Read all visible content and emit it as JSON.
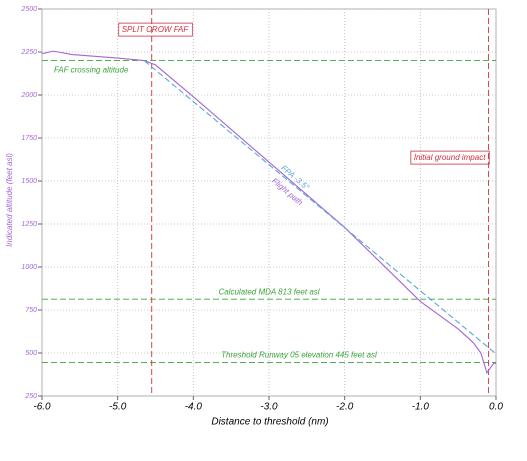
{
  "chart_data": {
    "type": "line",
    "xlabel": "Distance to threshold (nm)",
    "ylabel": "Indicated altitude (feet asl)",
    "xlim": [
      -6.0,
      0.0
    ],
    "xticks": [
      {
        "value": -6.0,
        "label": "-6.0"
      },
      {
        "value": -5.0,
        "label": "-5.0"
      },
      {
        "value": -4.0,
        "label": "-4.0"
      },
      {
        "value": -3.0,
        "label": "-3.0"
      },
      {
        "value": -2.0,
        "label": "-2.0"
      },
      {
        "value": -1.0,
        "label": "-1.0"
      },
      {
        "value": 0.0,
        "label": "0.0"
      }
    ],
    "ylim": [
      250,
      2500
    ],
    "yticks": [
      250,
      500,
      750,
      1000,
      1250,
      1500,
      1750,
      2000,
      2250,
      2500
    ],
    "grid": true,
    "series": [
      {
        "name": "Flight path",
        "color": "#a466d8",
        "x": [
          -6.0,
          -5.85,
          -5.6,
          -5.0,
          -4.65,
          -4.5,
          -4.0,
          -3.0,
          -2.0,
          -1.0,
          -0.5,
          -0.3,
          -0.2,
          -0.12,
          -0.08,
          -0.03,
          0.0
        ],
        "values": [
          2240,
          2255,
          2235,
          2215,
          2200,
          2175,
          1990,
          1610,
          1230,
          800,
          640,
          560,
          500,
          385,
          410,
          440,
          440
        ]
      },
      {
        "name": "FPA -3.5°",
        "color": "#5aa7d8",
        "x": [
          -4.65,
          0.0
        ],
        "values": [
          2200,
          495
        ]
      }
    ],
    "horizontal_lines": [
      {
        "label": "FAF crossing altitude",
        "value": 2200,
        "color": "#3aa43a"
      },
      {
        "label": "Calculated MDA 813 feet asl",
        "value": 813,
        "color": "#3aa43a"
      },
      {
        "label": "Threshold Runway 05 elevation 445 feet asl",
        "value": 445,
        "color": "#3aa43a"
      }
    ],
    "vertical_lines": [
      {
        "label": "SPLIT CROW FAF",
        "value": -4.55,
        "color": "#d03040"
      },
      {
        "label": "Initial ground impact",
        "value": -0.1,
        "color": "#d03040"
      }
    ]
  }
}
